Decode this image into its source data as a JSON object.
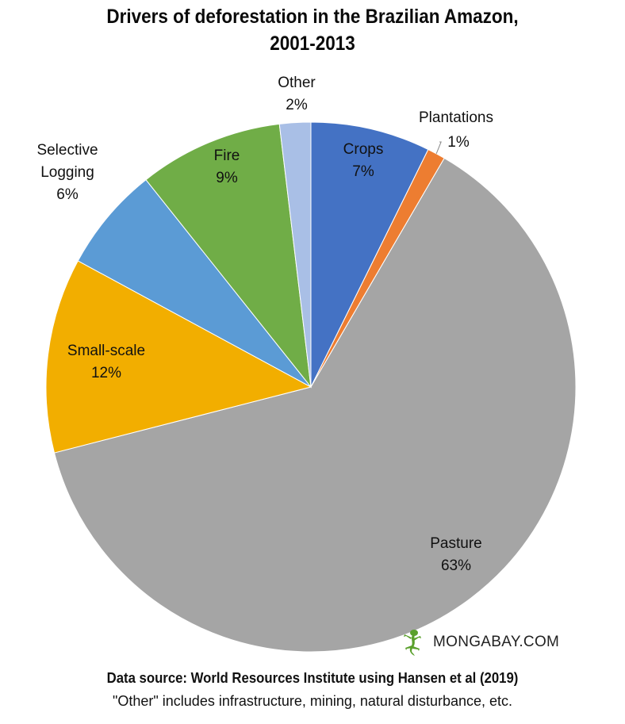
{
  "chart_data": {
    "type": "pie",
    "title": "Drivers of deforestation in the Brazilian Amazon, 2001-2013",
    "title_lines": [
      "Drivers of deforestation in the Brazilian Amazon,",
      "2001-2013"
    ],
    "slices": [
      {
        "label": "Crops",
        "label_lines": [
          "Crops"
        ],
        "pct_label": "7%",
        "value": 7.3,
        "color": "#4472c4"
      },
      {
        "label": "Plantations",
        "label_lines": [
          "Plantations"
        ],
        "pct_label": "1%",
        "value": 1.1,
        "color": "#ed7d31"
      },
      {
        "label": "Pasture",
        "label_lines": [
          "Pasture"
        ],
        "pct_label": "63%",
        "value": 62.6,
        "color": "#a5a5a5"
      },
      {
        "label": "Small-scale",
        "label_lines": [
          "Small-scale"
        ],
        "pct_label": "12%",
        "value": 11.9,
        "color": "#f2ae00"
      },
      {
        "label": "Selective Logging",
        "label_lines": [
          "Selective",
          "Logging"
        ],
        "pct_label": "6%",
        "value": 6.4,
        "color": "#5b9bd5"
      },
      {
        "label": "Fire",
        "label_lines": [
          "Fire"
        ],
        "pct_label": "9%",
        "value": 8.8,
        "color": "#70ad47"
      },
      {
        "label": "Other",
        "label_lines": [
          "Other"
        ],
        "pct_label": "2%",
        "value": 1.9,
        "color": "#a9bfe6"
      }
    ],
    "start": "12 o'clock, clockwise"
  },
  "branding": {
    "text": "MONGABAY.COM",
    "icon": "gecko-icon",
    "icon_color": "#5aa02c"
  },
  "footer": {
    "source": "Data source: World Resources Institute using Hansen et al  (2019)",
    "note": "\"Other\" includes infrastructure, mining, natural disturbance, etc."
  }
}
